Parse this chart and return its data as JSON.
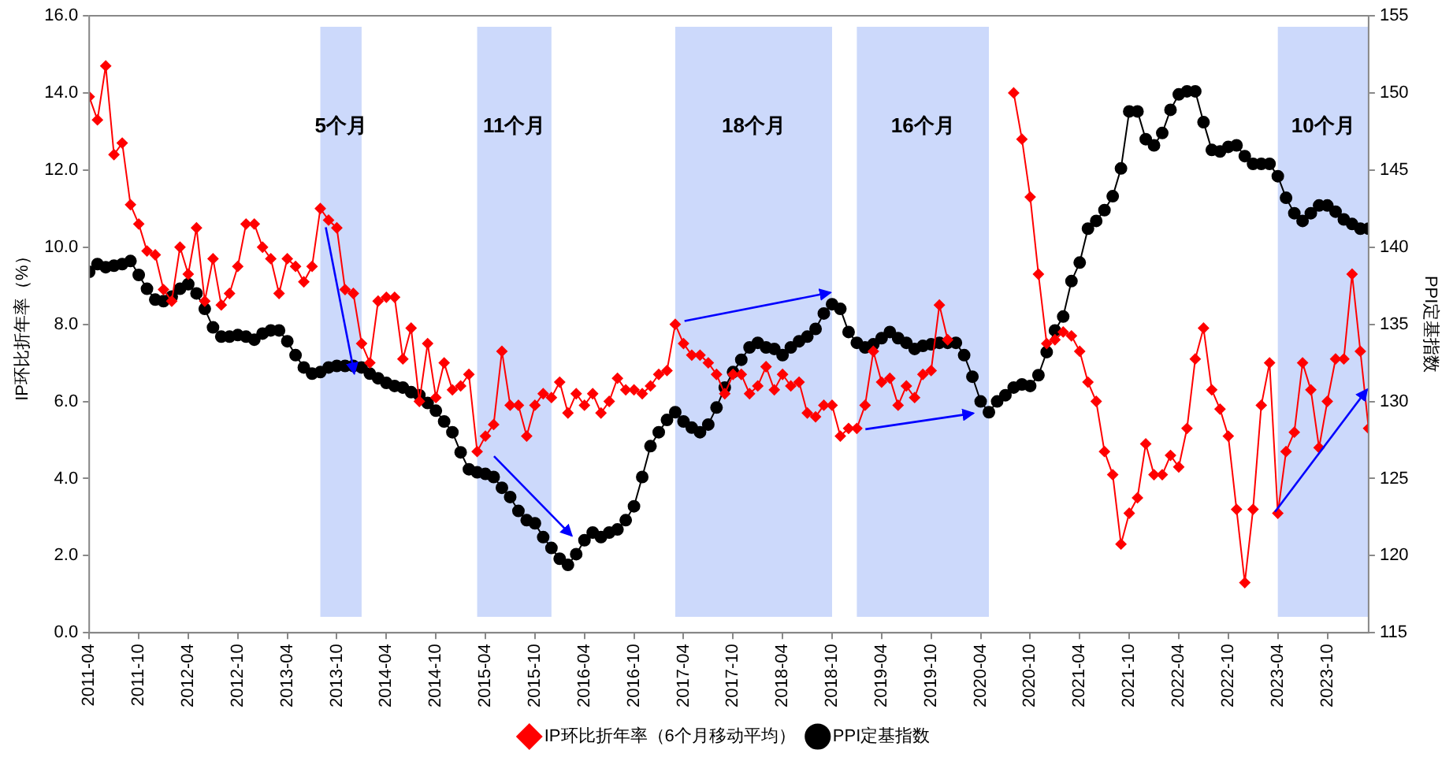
{
  "chart_data": {
    "type": "line",
    "ylabel": "IP环比折年率（%）",
    "y2label": "PPI定基指数",
    "legend": "bottom",
    "xlim": [
      "2011-04",
      "2024-03"
    ],
    "xticks": [
      "2011-04",
      "2011-10",
      "2012-04",
      "2012-10",
      "2013-04",
      "2013-10",
      "2014-04",
      "2014-10",
      "2015-04",
      "2015-10",
      "2016-04",
      "2016-10",
      "2017-04",
      "2017-10",
      "2018-04",
      "2018-10",
      "2019-04",
      "2019-10",
      "2020-04",
      "2020-10",
      "2021-04",
      "2021-10",
      "2022-04",
      "2022-10",
      "2023-04",
      "2023-10"
    ],
    "ylim": [
      0,
      16
    ],
    "yticks": [
      {
        "value": 0,
        "label": "0.0"
      },
      {
        "value": 2,
        "label": "2.0"
      },
      {
        "value": 4,
        "label": "4.0"
      },
      {
        "value": 6,
        "label": "6.0"
      },
      {
        "value": 8,
        "label": "8.0"
      },
      {
        "value": 10,
        "label": "10.0"
      },
      {
        "value": 12,
        "label": "12.0"
      },
      {
        "value": 14,
        "label": "14.0"
      },
      {
        "value": 16,
        "label": "16.0"
      }
    ],
    "y2lim": [
      115,
      155
    ],
    "y2ticks": [
      115,
      120,
      125,
      130,
      135,
      140,
      145,
      150,
      155
    ],
    "x": [
      "2011-04",
      "2011-05",
      "2011-06",
      "2011-07",
      "2011-08",
      "2011-09",
      "2011-10",
      "2011-11",
      "2011-12",
      "2012-01",
      "2012-02",
      "2012-03",
      "2012-04",
      "2012-05",
      "2012-06",
      "2012-07",
      "2012-08",
      "2012-09",
      "2012-10",
      "2012-11",
      "2012-12",
      "2013-01",
      "2013-02",
      "2013-03",
      "2013-04",
      "2013-05",
      "2013-06",
      "2013-07",
      "2013-08",
      "2013-09",
      "2013-10",
      "2013-11",
      "2013-12",
      "2014-01",
      "2014-02",
      "2014-03",
      "2014-04",
      "2014-05",
      "2014-06",
      "2014-07",
      "2014-08",
      "2014-09",
      "2014-10",
      "2014-11",
      "2014-12",
      "2015-01",
      "2015-02",
      "2015-03",
      "2015-04",
      "2015-05",
      "2015-06",
      "2015-07",
      "2015-08",
      "2015-09",
      "2015-10",
      "2015-11",
      "2015-12",
      "2016-01",
      "2016-02",
      "2016-03",
      "2016-04",
      "2016-05",
      "2016-06",
      "2016-07",
      "2016-08",
      "2016-09",
      "2016-10",
      "2016-11",
      "2016-12",
      "2017-01",
      "2017-02",
      "2017-03",
      "2017-04",
      "2017-05",
      "2017-06",
      "2017-07",
      "2017-08",
      "2017-09",
      "2017-10",
      "2017-11",
      "2017-12",
      "2018-01",
      "2018-02",
      "2018-03",
      "2018-04",
      "2018-05",
      "2018-06",
      "2018-07",
      "2018-08",
      "2018-09",
      "2018-10",
      "2018-11",
      "2018-12",
      "2019-01",
      "2019-02",
      "2019-03",
      "2019-04",
      "2019-05",
      "2019-06",
      "2019-07",
      "2019-08",
      "2019-09",
      "2019-10",
      "2019-11",
      "2019-12",
      "2020-01",
      "2020-02",
      "2020-03",
      "2020-04",
      "2020-05",
      "2020-06",
      "2020-07",
      "2020-08",
      "2020-09",
      "2020-10",
      "2020-11",
      "2020-12",
      "2021-01",
      "2021-02",
      "2021-03",
      "2021-04",
      "2021-05",
      "2021-06",
      "2021-07",
      "2021-08",
      "2021-09",
      "2021-10",
      "2021-11",
      "2021-12",
      "2022-01",
      "2022-02",
      "2022-03",
      "2022-04",
      "2022-05",
      "2022-06",
      "2022-07",
      "2022-08",
      "2022-09",
      "2022-10",
      "2022-11",
      "2022-12",
      "2023-01",
      "2023-02",
      "2023-03",
      "2023-04",
      "2023-05",
      "2023-06",
      "2023-07",
      "2023-08",
      "2023-09",
      "2023-10",
      "2023-11",
      "2023-12",
      "2024-01",
      "2024-02",
      "2024-03"
    ],
    "series": [
      {
        "name": "IP环比折年率（6个月移动平均）",
        "color": "#ff0000",
        "marker": "diamond",
        "values": [
          13.9,
          13.3,
          14.7,
          12.4,
          12.7,
          11.1,
          10.6,
          9.9,
          9.8,
          8.9,
          8.6,
          10.0,
          9.3,
          10.5,
          8.6,
          9.7,
          8.5,
          8.8,
          9.5,
          10.6,
          10.6,
          10.0,
          9.7,
          8.8,
          9.7,
          9.5,
          9.1,
          9.5,
          11.0,
          10.7,
          10.5,
          8.9,
          8.8,
          7.5,
          7.0,
          8.6,
          8.7,
          8.7,
          7.1,
          7.9,
          6.0,
          7.5,
          6.1,
          7.0,
          6.3,
          6.4,
          6.7,
          4.7,
          5.1,
          5.4,
          7.3,
          5.9,
          5.9,
          5.1,
          5.9,
          6.2,
          6.1,
          6.5,
          5.7,
          6.2,
          5.9,
          6.2,
          5.7,
          6.0,
          6.6,
          6.3,
          6.3,
          6.2,
          6.4,
          6.7,
          6.8,
          8.0,
          7.5,
          7.2,
          7.2,
          7.0,
          6.7,
          6.2,
          6.7,
          6.7,
          6.2,
          6.4,
          6.9,
          6.3,
          6.7,
          6.4,
          6.5,
          5.7,
          5.6,
          5.9,
          5.9,
          5.1,
          5.3,
          5.3,
          5.9,
          7.3,
          6.5,
          6.6,
          5.9,
          6.4,
          6.1,
          6.7,
          6.8,
          8.5,
          7.6,
          null,
          null,
          null,
          null,
          null,
          null,
          null,
          14.0,
          12.8,
          11.3,
          9.3,
          7.5,
          7.6,
          7.8,
          7.7,
          7.3,
          6.5,
          6.0,
          4.7,
          4.1,
          2.3,
          3.1,
          3.5,
          4.9,
          4.1,
          4.1,
          4.6,
          4.3,
          5.3,
          7.1,
          7.9,
          6.3,
          5.8,
          5.1,
          3.2,
          1.3,
          3.2,
          5.9,
          7.0,
          3.1,
          4.7,
          5.2,
          7.0,
          6.3,
          4.8,
          6.0,
          7.1,
          7.1,
          9.3,
          7.3,
          5.3
        ]
      },
      {
        "name": "PPI定基指数",
        "color": "#000000",
        "marker": "circle",
        "axis": "y2",
        "values": [
          138.4,
          138.9,
          138.7,
          138.8,
          138.9,
          139.1,
          138.2,
          137.3,
          136.6,
          136.5,
          136.8,
          137.3,
          137.6,
          137.0,
          136.0,
          134.8,
          134.2,
          134.2,
          134.3,
          134.2,
          134.0,
          134.4,
          134.6,
          134.6,
          133.9,
          133.0,
          132.2,
          131.8,
          131.9,
          132.2,
          132.3,
          132.3,
          132.3,
          132.2,
          131.8,
          131.5,
          131.2,
          131.0,
          130.9,
          130.6,
          130.4,
          129.9,
          129.4,
          128.7,
          128.0,
          126.7,
          125.6,
          125.4,
          125.3,
          125.1,
          124.4,
          123.8,
          122.9,
          122.3,
          122.1,
          121.2,
          120.5,
          119.8,
          119.4,
          120.1,
          121.0,
          121.5,
          121.2,
          121.5,
          121.7,
          122.3,
          123.2,
          125.1,
          127.1,
          128.0,
          128.8,
          129.3,
          128.7,
          128.3,
          128.0,
          128.5,
          129.6,
          130.9,
          131.9,
          132.7,
          133.5,
          133.8,
          133.5,
          133.4,
          133.0,
          133.5,
          133.9,
          134.2,
          134.7,
          135.7,
          136.3,
          136.0,
          134.5,
          133.8,
          133.5,
          133.7,
          134.1,
          134.5,
          134.1,
          133.8,
          133.4,
          133.6,
          133.7,
          133.8,
          133.8,
          133.8,
          133.0,
          131.6,
          130.0,
          129.3,
          130.0,
          130.4,
          130.9,
          131.1,
          131.0,
          131.7,
          133.2,
          134.6,
          135.5,
          137.8,
          139.0,
          141.2,
          141.7,
          142.4,
          143.3,
          145.1,
          148.8,
          148.8,
          147.0,
          146.6,
          147.4,
          148.9,
          149.9,
          150.1,
          150.1,
          148.1,
          146.3,
          146.2,
          146.5,
          146.6,
          145.9,
          145.4,
          145.4,
          145.4,
          144.6,
          143.2,
          142.2,
          141.7,
          142.2,
          142.7,
          142.7,
          142.3,
          141.8,
          141.5,
          141.2,
          141.2
        ]
      }
    ],
    "bands": [
      {
        "axis": "x",
        "from": "2013-08",
        "to": "2014-01",
        "label": "5个月",
        "color": "#ccd9fb"
      },
      {
        "axis": "x",
        "from": "2015-03",
        "to": "2015-12",
        "label": "11个月",
        "color": "#ccd9fb"
      },
      {
        "axis": "x",
        "from": "2017-03",
        "to": "2018-10",
        "label": "18个月",
        "color": "#ccd9fb"
      },
      {
        "axis": "x",
        "from": "2019-01",
        "to": "2020-05",
        "label": "16个月",
        "color": "#ccd9fb"
      },
      {
        "axis": "x",
        "from": "2023-04",
        "to": "2024-03",
        "label": "10个月",
        "color": "#ccd9fb"
      }
    ]
  }
}
